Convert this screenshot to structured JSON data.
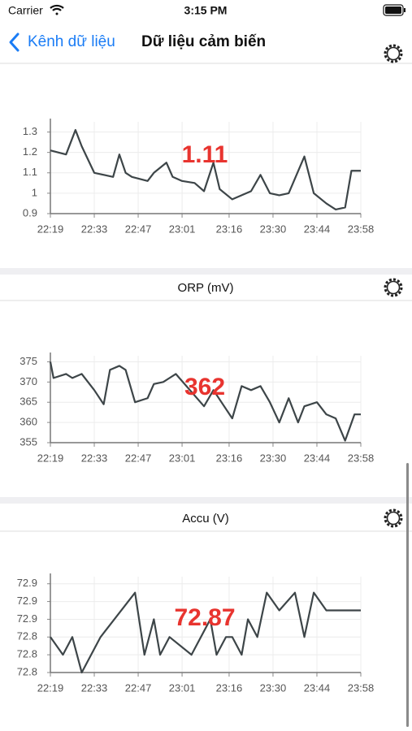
{
  "status_bar": {
    "carrier": "Carrier",
    "time": "3:15 PM"
  },
  "nav": {
    "back": "Kênh dữ liệu",
    "title": "Dữ liệu cảm biến"
  },
  "chart_data": [
    {
      "type": "line",
      "annotation": "1.11",
      "color": "#3d4548",
      "x": [
        1339,
        1344,
        1347,
        1349,
        1353,
        1359,
        1361,
        1363,
        1365,
        1370,
        1372,
        1376,
        1378,
        1381,
        1385,
        1388,
        1391,
        1393,
        1397,
        1400,
        1403,
        1406,
        1409,
        1412,
        1415,
        1420,
        1423,
        1427,
        1430,
        1433,
        1435,
        1438
      ],
      "values": [
        1.21,
        1.19,
        1.31,
        1.23,
        1.1,
        1.08,
        1.19,
        1.1,
        1.08,
        1.06,
        1.1,
        1.15,
        1.08,
        1.06,
        1.05,
        1.01,
        1.15,
        1.02,
        0.97,
        0.99,
        1.01,
        1.09,
        1.0,
        0.99,
        1.0,
        1.18,
        1.0,
        0.95,
        0.92,
        0.93,
        1.11,
        1.11
      ],
      "xlim": [
        1339,
        1438
      ],
      "xticks": [
        {
          "value": 1339,
          "label": "22:19"
        },
        {
          "value": 1353,
          "label": "22:33"
        },
        {
          "value": 1367,
          "label": "22:47"
        },
        {
          "value": 1381,
          "label": "23:01"
        },
        {
          "value": 1396,
          "label": "23:16"
        },
        {
          "value": 1410,
          "label": "23:30"
        },
        {
          "value": 1424,
          "label": "23:44"
        },
        {
          "value": 1438,
          "label": "23:58"
        }
      ],
      "ylim": [
        0.9,
        1.35
      ],
      "yticks": [
        0.9,
        1,
        1.1,
        1.2,
        1.3
      ],
      "grid": true
    },
    {
      "type": "line",
      "title": "ORP (mV)",
      "annotation": "362",
      "color": "#3d4548",
      "x": [
        1339,
        1340,
        1344,
        1346,
        1349,
        1353,
        1356,
        1358,
        1361,
        1363,
        1366,
        1370,
        1372,
        1375,
        1377,
        1379,
        1388,
        1391,
        1397,
        1400,
        1403,
        1406,
        1409,
        1412,
        1415,
        1418,
        1420,
        1424,
        1427,
        1430,
        1433,
        1436,
        1438
      ],
      "values": [
        375,
        371,
        372,
        371,
        372,
        368,
        364.5,
        373,
        374,
        373,
        365,
        366,
        369.5,
        370,
        371,
        372,
        364,
        368,
        361,
        369,
        368,
        369,
        365,
        360,
        366,
        360,
        364,
        365,
        362,
        361,
        355.5,
        362,
        362
      ],
      "xlim": [
        1339,
        1438
      ],
      "xticks": [
        {
          "value": 1339,
          "label": "22:19"
        },
        {
          "value": 1353,
          "label": "22:33"
        },
        {
          "value": 1367,
          "label": "22:47"
        },
        {
          "value": 1381,
          "label": "23:01"
        },
        {
          "value": 1396,
          "label": "23:16"
        },
        {
          "value": 1410,
          "label": "23:30"
        },
        {
          "value": 1424,
          "label": "23:44"
        },
        {
          "value": 1438,
          "label": "23:58"
        }
      ],
      "ylim": [
        355,
        376.5
      ],
      "yticks": [
        355,
        360,
        365,
        370,
        375
      ],
      "grid": true
    },
    {
      "type": "line",
      "title": "Accu (V)",
      "annotation": "72.87",
      "color": "#3d4548",
      "x": [
        1339,
        1343,
        1346,
        1349,
        1352,
        1355,
        1366,
        1369,
        1372,
        1374,
        1377,
        1384,
        1390,
        1392,
        1395,
        1397,
        1400,
        1402,
        1405,
        1408,
        1412,
        1417,
        1420,
        1423,
        1427,
        1438
      ],
      "values": [
        72.825,
        72.8,
        72.825,
        72.775,
        72.8,
        72.825,
        72.8875,
        72.8,
        72.85,
        72.8,
        72.825,
        72.8,
        72.85,
        72.8,
        72.825,
        72.825,
        72.8,
        72.85,
        72.825,
        72.8875,
        72.8625,
        72.8875,
        72.825,
        72.8875,
        72.8625,
        72.8625
      ],
      "xlim": [
        1339,
        1438
      ],
      "xticks": [
        {
          "value": 1339,
          "label": "22:19"
        },
        {
          "value": 1353,
          "label": "22:33"
        },
        {
          "value": 1367,
          "label": "22:47"
        },
        {
          "value": 1381,
          "label": "23:01"
        },
        {
          "value": 1396,
          "label": "23:16"
        },
        {
          "value": 1410,
          "label": "23:30"
        },
        {
          "value": 1424,
          "label": "23:44"
        },
        {
          "value": 1438,
          "label": "23:58"
        }
      ],
      "ylim": [
        72.775,
        72.91
      ],
      "yticks": [
        {
          "value": 72.775,
          "label": "72.8"
        },
        {
          "value": 72.8,
          "label": "72.8"
        },
        {
          "value": 72.825,
          "label": "72.8"
        },
        {
          "value": 72.85,
          "label": "72.9"
        },
        {
          "value": 72.875,
          "label": "72.9"
        },
        {
          "value": 72.9,
          "label": "72.9"
        }
      ],
      "grid": true
    }
  ]
}
